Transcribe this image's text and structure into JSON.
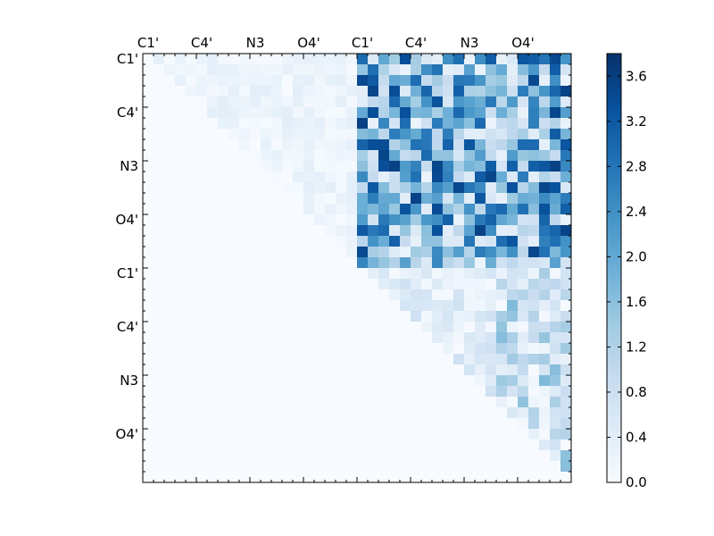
{
  "chart_data": {
    "type": "heatmap",
    "title": "",
    "labels": [
      "C1'",
      "C4'",
      "N3",
      "O4'",
      "C1'",
      "C4'",
      "N3",
      "O4'"
    ],
    "grid_size": 40,
    "block_size": 20,
    "cmap": "Blues",
    "colorbar": {
      "min": 0.0,
      "max": 3.8,
      "ticks": [
        "0.0",
        "0.4",
        "0.8",
        "1.2",
        "1.6",
        "2.0",
        "2.4",
        "2.8",
        "3.2",
        "3.6"
      ]
    },
    "values": {
      "upper_left_block_level": 0.25,
      "off_diagonal_block_level": 2.0,
      "lower_right_block_level": 0.55,
      "lower_triangle_level": 0.0
    }
  }
}
